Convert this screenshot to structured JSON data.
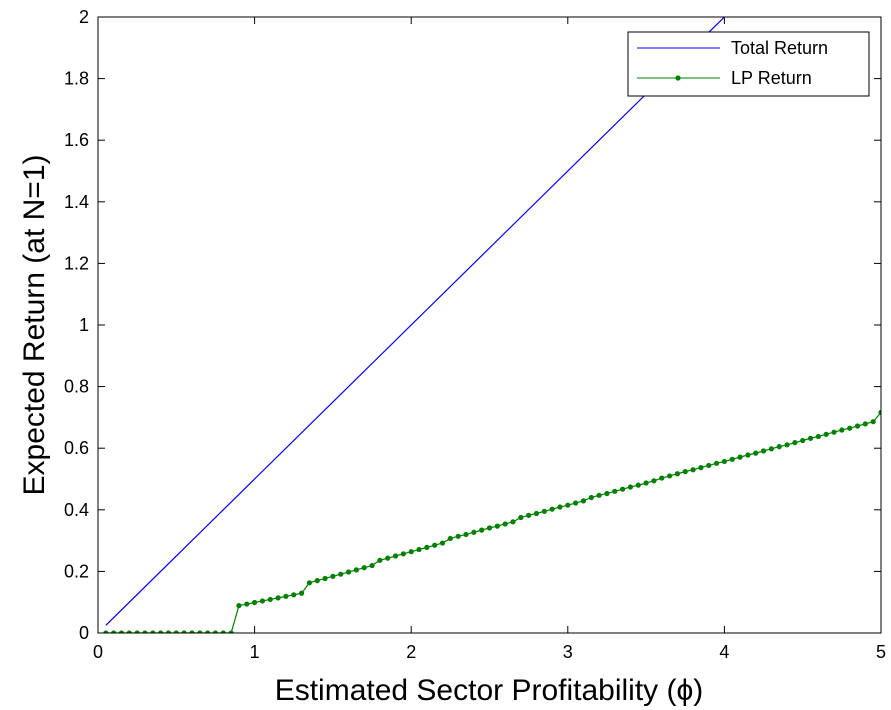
{
  "chart_data": {
    "type": "line",
    "title": "",
    "xlabel": "Estimated Sector Profitability (ϕ)",
    "ylabel": "Expected Return (at N=1)",
    "xlim": [
      0,
      5
    ],
    "ylim": [
      0,
      2
    ],
    "x_ticks": [
      0,
      1,
      2,
      3,
      4,
      5
    ],
    "x_tick_labels": [
      "0",
      "1",
      "2",
      "3",
      "4",
      "5"
    ],
    "y_ticks": [
      0,
      0.2,
      0.4,
      0.6,
      0.8,
      1,
      1.2,
      1.4,
      1.6,
      1.8,
      2
    ],
    "y_tick_labels": [
      "0",
      "0.2",
      "0.4",
      "0.6",
      "0.8",
      "1",
      "1.2",
      "1.4",
      "1.6",
      "1.8",
      "2"
    ],
    "grid": false,
    "legend_position": "top-right",
    "series": [
      {
        "name": "Total Return",
        "color": "#0000ff",
        "marker": "none",
        "x": [
          0.05,
          5.0
        ],
        "y": [
          0.025,
          2.5
        ]
      },
      {
        "name": "LP Return",
        "color": "#008000",
        "marker": "dot",
        "x": [
          0.05,
          0.1,
          0.15,
          0.2,
          0.25,
          0.3,
          0.35,
          0.4,
          0.45,
          0.5,
          0.55,
          0.6,
          0.65,
          0.7,
          0.75,
          0.8,
          0.85,
          0.9,
          0.95,
          1.0,
          1.05,
          1.1,
          1.15,
          1.2,
          1.25,
          1.3,
          1.35,
          1.4,
          1.45,
          1.5,
          1.55,
          1.6,
          1.65,
          1.7,
          1.75,
          1.8,
          1.85,
          1.9,
          1.95,
          2.0,
          2.05,
          2.1,
          2.15,
          2.2,
          2.25,
          2.3,
          2.35,
          2.4,
          2.45,
          2.5,
          2.55,
          2.6,
          2.65,
          2.7,
          2.75,
          2.8,
          2.85,
          2.9,
          2.95,
          3.0,
          3.05,
          3.1,
          3.15,
          3.2,
          3.25,
          3.3,
          3.35,
          3.4,
          3.45,
          3.5,
          3.55,
          3.6,
          3.65,
          3.7,
          3.75,
          3.8,
          3.85,
          3.9,
          3.95,
          4.0,
          4.05,
          4.1,
          4.15,
          4.2,
          4.25,
          4.3,
          4.35,
          4.4,
          4.45,
          4.5,
          4.55,
          4.6,
          4.65,
          4.7,
          4.75,
          4.8,
          4.85,
          4.9,
          4.95,
          5.0
        ],
        "y": [
          0,
          0,
          0,
          0,
          0,
          0,
          0,
          0,
          0,
          0,
          0,
          0,
          0,
          0,
          0,
          0,
          0,
          0.089,
          0.094,
          0.099,
          0.104,
          0.109,
          0.114,
          0.119,
          0.124,
          0.129,
          0.163,
          0.17,
          0.177,
          0.184,
          0.191,
          0.198,
          0.205,
          0.212,
          0.219,
          0.236,
          0.243,
          0.25,
          0.257,
          0.264,
          0.271,
          0.278,
          0.285,
          0.292,
          0.307,
          0.314,
          0.32,
          0.327,
          0.334,
          0.341,
          0.347,
          0.354,
          0.361,
          0.375,
          0.382,
          0.388,
          0.395,
          0.402,
          0.409,
          0.415,
          0.422,
          0.429,
          0.44,
          0.447,
          0.453,
          0.46,
          0.467,
          0.474,
          0.48,
          0.487,
          0.494,
          0.503,
          0.51,
          0.517,
          0.524,
          0.53,
          0.537,
          0.544,
          0.551,
          0.557,
          0.564,
          0.571,
          0.578,
          0.584,
          0.591,
          0.598,
          0.605,
          0.611,
          0.618,
          0.625,
          0.632,
          0.638,
          0.645,
          0.652,
          0.659,
          0.665,
          0.672,
          0.679,
          0.686,
          0.716
        ]
      }
    ]
  }
}
